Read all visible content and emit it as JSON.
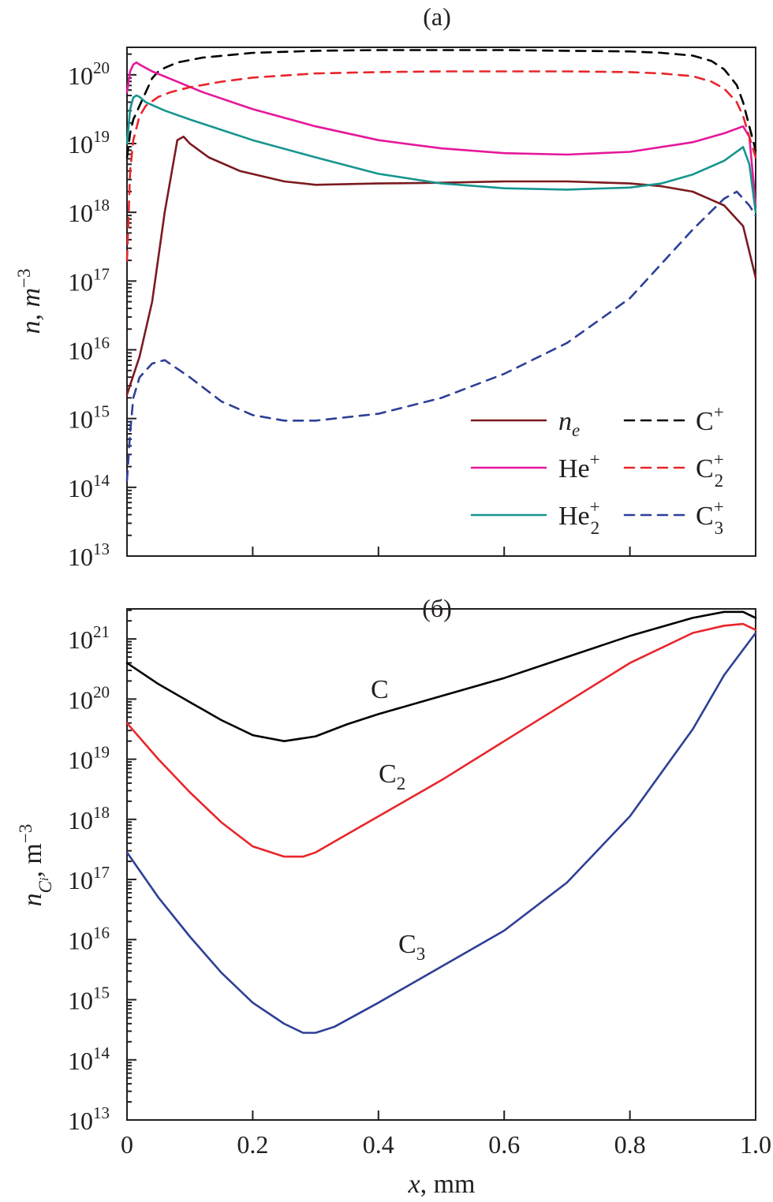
{
  "chart_data": [
    {
      "panel_label": "(a)",
      "type": "line",
      "yscale": "log",
      "xlim": [
        0,
        1.0
      ],
      "ylim_exp": [
        13,
        20.4
      ],
      "ylabel": "n, m",
      "ylabel_sup": "−3",
      "y_ticks": [
        {
          "base": "10",
          "exp": "13",
          "value": 13
        },
        {
          "base": "10",
          "exp": "14",
          "value": 14
        },
        {
          "base": "10",
          "exp": "15",
          "value": 15
        },
        {
          "base": "10",
          "exp": "16",
          "value": 16
        },
        {
          "base": "10",
          "exp": "17",
          "value": 17
        },
        {
          "base": "10",
          "exp": "18",
          "value": 18
        },
        {
          "base": "10",
          "exp": "19",
          "value": 19
        },
        {
          "base": "10",
          "exp": "20",
          "value": 20
        }
      ],
      "legend": [
        {
          "key": "n_e",
          "text": "n",
          "sub": "e",
          "sup": "",
          "italic": true
        },
        {
          "key": "C+",
          "text": "C",
          "sub": "",
          "sup": "+",
          "italic": false
        },
        {
          "key": "He+",
          "text": "He",
          "sub": "",
          "sup": "+",
          "italic": false
        },
        {
          "key": "C2+",
          "text": "C",
          "sub": "2",
          "sup": "+",
          "italic": false
        },
        {
          "key": "He2+",
          "text": "He",
          "sub": "2",
          "sup": "+",
          "italic": false
        },
        {
          "key": "C3+",
          "text": "C",
          "sub": "3",
          "sup": "+",
          "italic": false
        }
      ],
      "series": [
        {
          "key": "n_e",
          "color": "#7b1a1f",
          "dash": "solid",
          "x": [
            0,
            0.02,
            0.04,
            0.06,
            0.08,
            0.09,
            0.1,
            0.13,
            0.18,
            0.25,
            0.3,
            0.4,
            0.5,
            0.6,
            0.7,
            0.8,
            0.85,
            0.9,
            0.95,
            0.98,
            1.0
          ],
          "logy": [
            15.35,
            15.9,
            16.7,
            18.0,
            19.05,
            19.1,
            19.0,
            18.8,
            18.6,
            18.45,
            18.4,
            18.42,
            18.43,
            18.45,
            18.45,
            18.42,
            18.38,
            18.3,
            18.1,
            17.8,
            17.05
          ]
        },
        {
          "key": "C+",
          "color": "#000000",
          "dash": "dashed",
          "x": [
            0,
            0.005,
            0.01,
            0.02,
            0.03,
            0.04,
            0.05,
            0.06,
            0.08,
            0.12,
            0.2,
            0.3,
            0.4,
            0.5,
            0.6,
            0.7,
            0.8,
            0.85,
            0.9,
            0.93,
            0.95,
            0.97,
            0.98,
            0.99,
            1.0
          ],
          "logy": [
            18.8,
            19.15,
            19.35,
            19.55,
            19.75,
            19.95,
            20.05,
            20.1,
            20.18,
            20.25,
            20.32,
            20.35,
            20.36,
            20.36,
            20.36,
            20.35,
            20.34,
            20.32,
            20.28,
            20.2,
            20.08,
            19.85,
            19.6,
            19.25,
            18.9
          ]
        },
        {
          "key": "He+",
          "color": "#e5189a",
          "dash": "solid",
          "x": [
            0,
            0.005,
            0.01,
            0.015,
            0.02,
            0.04,
            0.08,
            0.12,
            0.2,
            0.3,
            0.4,
            0.5,
            0.6,
            0.7,
            0.8,
            0.9,
            0.95,
            0.98,
            0.99,
            1.0
          ],
          "logy": [
            19.75,
            20.05,
            20.15,
            20.18,
            20.15,
            20.05,
            19.9,
            19.75,
            19.5,
            19.25,
            19.05,
            18.93,
            18.86,
            18.84,
            18.88,
            19.02,
            19.15,
            19.25,
            19.1,
            18.1
          ]
        },
        {
          "key": "C2+",
          "color": "#e8252b",
          "dash": "dashed",
          "x": [
            0,
            0.005,
            0.01,
            0.02,
            0.03,
            0.05,
            0.07,
            0.1,
            0.15,
            0.2,
            0.3,
            0.4,
            0.5,
            0.6,
            0.7,
            0.8,
            0.85,
            0.9,
            0.93,
            0.95,
            0.97,
            0.98,
            0.99,
            1.0
          ],
          "logy": [
            17.3,
            18.6,
            19.05,
            19.4,
            19.55,
            19.68,
            19.75,
            19.82,
            19.9,
            19.96,
            20.02,
            20.04,
            20.05,
            20.05,
            20.05,
            20.04,
            20.02,
            19.98,
            19.9,
            19.8,
            19.6,
            19.4,
            19.1,
            18.8
          ]
        },
        {
          "key": "He2+",
          "color": "#16958f",
          "dash": "solid",
          "x": [
            0,
            0.005,
            0.01,
            0.015,
            0.02,
            0.03,
            0.06,
            0.1,
            0.15,
            0.2,
            0.3,
            0.4,
            0.5,
            0.6,
            0.7,
            0.8,
            0.85,
            0.9,
            0.95,
            0.98,
            0.99,
            1.0
          ],
          "logy": [
            19.0,
            19.5,
            19.67,
            19.7,
            19.68,
            19.6,
            19.48,
            19.35,
            19.2,
            19.05,
            18.8,
            18.56,
            18.42,
            18.35,
            18.33,
            18.36,
            18.42,
            18.55,
            18.75,
            18.95,
            18.7,
            18.0
          ]
        },
        {
          "key": "C3+",
          "color": "#2e3f96",
          "dash": "dashed",
          "x": [
            0,
            0.005,
            0.01,
            0.02,
            0.04,
            0.06,
            0.1,
            0.15,
            0.2,
            0.25,
            0.3,
            0.4,
            0.5,
            0.6,
            0.7,
            0.8,
            0.85,
            0.9,
            0.95,
            0.97,
            0.99,
            1.0
          ],
          "logy": [
            14.1,
            14.8,
            15.3,
            15.6,
            15.8,
            15.85,
            15.6,
            15.25,
            15.05,
            14.97,
            14.97,
            15.07,
            15.3,
            15.65,
            16.1,
            16.75,
            17.25,
            17.75,
            18.2,
            18.3,
            18.1,
            17.95
          ]
        }
      ]
    },
    {
      "panel_label": "(б)",
      "type": "line",
      "yscale": "log",
      "xlim": [
        0,
        1.0
      ],
      "ylim_exp": [
        13,
        21.5
      ],
      "xlabel": "x, mm",
      "ylabel": "n",
      "ylabel_sub": "C",
      "ylabel_subsub": "i",
      "ylabel_tail": ", m",
      "ylabel_sup": "−3",
      "x_ticks": [
        "0",
        "0.2",
        "0.4",
        "0.6",
        "0.8",
        "1.0"
      ],
      "x_tick_values": [
        0,
        0.2,
        0.4,
        0.6,
        0.8,
        1.0
      ],
      "y_ticks": [
        {
          "base": "10",
          "exp": "13",
          "value": 13
        },
        {
          "base": "10",
          "exp": "14",
          "value": 14
        },
        {
          "base": "10",
          "exp": "15",
          "value": 15
        },
        {
          "base": "10",
          "exp": "16",
          "value": 16
        },
        {
          "base": "10",
          "exp": "17",
          "value": 17
        },
        {
          "base": "10",
          "exp": "18",
          "value": 18
        },
        {
          "base": "10",
          "exp": "19",
          "value": 19
        },
        {
          "base": "10",
          "exp": "20",
          "value": 20
        },
        {
          "base": "10",
          "exp": "21",
          "value": 21
        }
      ],
      "curve_labels": [
        {
          "key": "C",
          "text": "C",
          "sub": ""
        },
        {
          "key": "C2",
          "text": "C",
          "sub": "2"
        },
        {
          "key": "C3",
          "text": "C",
          "sub": "3"
        }
      ],
      "series": [
        {
          "key": "C",
          "color": "#000000",
          "dash": "solid",
          "x": [
            0,
            0.05,
            0.1,
            0.15,
            0.2,
            0.25,
            0.3,
            0.35,
            0.4,
            0.5,
            0.6,
            0.7,
            0.8,
            0.9,
            0.95,
            0.98,
            1.0
          ],
          "logy": [
            20.6,
            20.25,
            19.95,
            19.65,
            19.4,
            19.3,
            19.38,
            19.58,
            19.75,
            20.05,
            20.35,
            20.7,
            21.05,
            21.35,
            21.45,
            21.45,
            21.35
          ]
        },
        {
          "key": "C2",
          "color": "#e8252b",
          "dash": "solid",
          "x": [
            0,
            0.05,
            0.1,
            0.15,
            0.2,
            0.25,
            0.28,
            0.3,
            0.35,
            0.4,
            0.5,
            0.6,
            0.7,
            0.8,
            0.9,
            0.95,
            0.98,
            1.0
          ],
          "logy": [
            19.6,
            19.0,
            18.45,
            17.95,
            17.55,
            17.38,
            17.38,
            17.45,
            17.75,
            18.05,
            18.65,
            19.3,
            19.95,
            20.6,
            21.1,
            21.22,
            21.25,
            21.15
          ]
        },
        {
          "key": "C3",
          "color": "#2e3f96",
          "dash": "solid",
          "x": [
            0,
            0.05,
            0.1,
            0.15,
            0.2,
            0.25,
            0.28,
            0.3,
            0.33,
            0.4,
            0.5,
            0.6,
            0.7,
            0.8,
            0.9,
            0.95,
            1.0
          ],
          "logy": [
            17.45,
            16.7,
            16.05,
            15.45,
            14.95,
            14.6,
            14.45,
            14.45,
            14.55,
            14.95,
            15.55,
            16.15,
            16.95,
            18.05,
            19.5,
            20.4,
            21.1
          ]
        }
      ]
    }
  ]
}
